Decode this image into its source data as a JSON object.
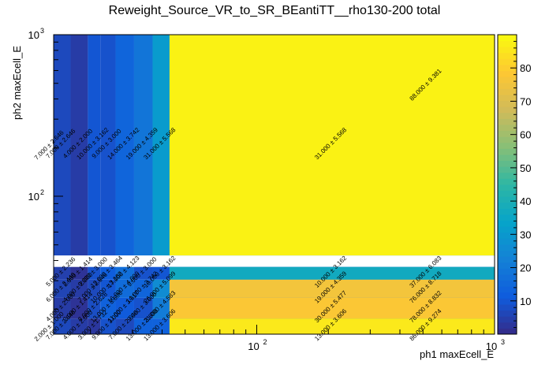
{
  "chart_data": {
    "type": "heatmap",
    "title": "Reweight_Source_VR_to_SR_BEantiTT__rho130-200 total",
    "xlabel": "ph1 maxEcell_E",
    "ylabel": "ph2 maxEcell_E",
    "x_scale": "log",
    "y_scale": "log",
    "xlim": [
      14,
      1000
    ],
    "ylim": [
      14,
      1000
    ],
    "x_ticks": [
      {
        "value": 100,
        "base": "10",
        "exp": "2"
      },
      {
        "value": 1000,
        "base": "10",
        "exp": "3"
      }
    ],
    "y_ticks": [
      {
        "value": 100,
        "base": "10",
        "exp": "2"
      },
      {
        "value": 1000,
        "base": "10",
        "exp": "3"
      }
    ],
    "x_edges": [
      14,
      16.5,
      19.5,
      22,
      25.5,
      30.5,
      36.5,
      43,
      1000
    ],
    "y_edges": [
      14,
      17.5,
      23.5,
      30.5,
      36.5,
      43,
      1000
    ],
    "zlim": [
      0,
      90
    ],
    "colorbar_ticks": [
      10,
      20,
      30,
      40,
      50,
      60,
      70,
      80
    ],
    "colorbar_colors": [
      "#352a87",
      "#0f5cdd",
      "#1481d6",
      "#06a4ca",
      "#2eb7a4",
      "#87bf77",
      "#d1bb59",
      "#fec832",
      "#f9fb0e"
    ],
    "cells": [
      [
        "7.000 ± 2.646",
        "4.000 ± 2.000",
        "3.000 ± 1.732",
        "9.000 ± 3.000",
        "7.000 ± 2.646",
        "13.000 ± 3.606",
        "13.000 ± 3.606",
        "13.000 ± 3.606"
      ],
      [
        "4.000 ± 2.000",
        "2.000 ± 1.414",
        "8.000 ± 2.828",
        "13.000 ± 3.606",
        "11.000 ± 3.317",
        "9.000 ± 3.000",
        "21.000 ± 4.583",
        "30.000 ± 5.477"
      ],
      [
        "6.000 ± 2.449",
        "4.000 ± 2.000",
        "7.000 ± 2.646",
        "10.000 ± 3.162",
        "16.000 ± 4.000",
        "14.000 ± 3.742",
        "26.000 ± 5.099",
        "19.000 ± 4.359"
      ],
      [
        "5.000 ± 2.236",
        "2.000 ± 1.414",
        "9.000 ± 3.000",
        "12.000 ± 3.464",
        "17.000 ± 4.123",
        "9.000 ± 3.000",
        "10.000 ± 3.162",
        "10.000 ± 3.162"
      ],
      [],
      [
        "7.000 ± 2.646",
        "4.000 ± 2.000",
        "10.000 ± 3.162",
        "9.000 ± 3.000",
        "14.000 ± 3.742",
        "19.000 ± 4.359",
        "31.000 ± 5.568",
        "31.000 ± 5.568"
      ]
    ],
    "wide_cells": [
      {
        "row": 0,
        "value": 86,
        "label": "86.000 ± 9.274"
      },
      {
        "row": 1,
        "value": 78,
        "label": "78.000 ± 8.832"
      },
      {
        "row": 2,
        "value": 76,
        "label": "76.000 ± 8.718"
      },
      {
        "row": 3,
        "value": 37,
        "label": "37.000 ± 6.083"
      },
      {
        "row": 5,
        "value": 88,
        "label": "88.000 ± 9.381"
      }
    ],
    "tick_label_rows": [
      {
        "row": 0,
        "text": "2.000 ± 1.000"
      },
      {
        "row": 5,
        "text": "7.000 ± 2.646"
      }
    ],
    "grid": false,
    "colorbar": "right"
  }
}
